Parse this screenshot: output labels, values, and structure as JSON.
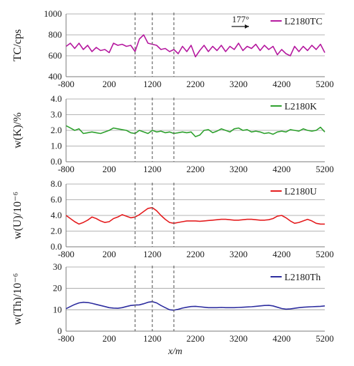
{
  "x_label": "x/m",
  "dashed_lines_x": [
    800,
    1200,
    1700
  ],
  "direction_label": "177°",
  "chart_data": [
    {
      "type": "line",
      "ylabel": "TC/cps",
      "xlim": [
        -800,
        5200
      ],
      "ylim": [
        400,
        1000
      ],
      "x_ticks": [
        "-800",
        "200",
        "1200",
        "2200",
        "3200",
        "4200",
        "5200"
      ],
      "y_ticks": [
        "400",
        "600",
        "800",
        "1000"
      ],
      "grid": true,
      "legend_position": "top-right",
      "series": [
        {
          "name": "L2180TC",
          "color": "#b5179e",
          "x": [
            -800,
            -700,
            -600,
            -500,
            -400,
            -300,
            -200,
            -100,
            0,
            100,
            200,
            300,
            400,
            500,
            600,
            700,
            800,
            900,
            1000,
            1100,
            1200,
            1300,
            1400,
            1500,
            1600,
            1700,
            1800,
            1900,
            2000,
            2100,
            2200,
            2300,
            2400,
            2500,
            2600,
            2700,
            2800,
            2900,
            3000,
            3100,
            3200,
            3300,
            3400,
            3500,
            3600,
            3700,
            3800,
            3900,
            4000,
            4100,
            4200,
            4300,
            4400,
            4500,
            4600,
            4700,
            4800,
            4900,
            5000,
            5100,
            5200
          ],
          "y": [
            690,
            720,
            670,
            720,
            660,
            700,
            640,
            680,
            650,
            660,
            630,
            720,
            700,
            710,
            690,
            700,
            640,
            760,
            800,
            720,
            710,
            700,
            660,
            670,
            640,
            660,
            620,
            690,
            640,
            700,
            590,
            650,
            700,
            640,
            690,
            650,
            700,
            640,
            690,
            660,
            720,
            650,
            690,
            670,
            710,
            650,
            700,
            660,
            690,
            610,
            660,
            620,
            600,
            690,
            640,
            690,
            650,
            700,
            660,
            710,
            630
          ]
        }
      ]
    },
    {
      "type": "line",
      "ylabel": "w(K)/%",
      "xlim": [
        -800,
        5200
      ],
      "ylim": [
        0.0,
        4.0
      ],
      "x_ticks": [
        "-800",
        "200",
        "1200",
        "2200",
        "3200",
        "4200",
        "5200"
      ],
      "y_ticks": [
        "0.0",
        "1.0",
        "2.0",
        "3.0",
        "4.0"
      ],
      "grid": true,
      "legend_position": "top-right",
      "series": [
        {
          "name": "L2180K",
          "color": "#2ca02c",
          "x": [
            -800,
            -700,
            -600,
            -500,
            -400,
            -300,
            -200,
            -100,
            0,
            100,
            200,
            300,
            400,
            500,
            600,
            700,
            800,
            900,
            1000,
            1100,
            1200,
            1300,
            1400,
            1500,
            1600,
            1700,
            1800,
            1900,
            2000,
            2100,
            2200,
            2300,
            2400,
            2500,
            2600,
            2700,
            2800,
            2900,
            3000,
            3100,
            3200,
            3300,
            3400,
            3500,
            3600,
            3700,
            3800,
            3900,
            4000,
            4100,
            4200,
            4300,
            4400,
            4500,
            4600,
            4700,
            4800,
            4900,
            5000,
            5100,
            5200
          ],
          "y": [
            2.3,
            2.15,
            2.0,
            2.1,
            1.8,
            1.85,
            1.9,
            1.85,
            1.8,
            1.9,
            2.0,
            2.15,
            2.1,
            2.05,
            2.0,
            1.85,
            1.8,
            2.0,
            1.9,
            1.8,
            2.0,
            1.9,
            1.95,
            1.85,
            1.9,
            1.8,
            1.85,
            1.9,
            1.85,
            1.9,
            1.6,
            1.7,
            2.0,
            2.05,
            1.85,
            1.95,
            2.1,
            2.0,
            1.9,
            2.1,
            2.15,
            2.0,
            2.05,
            1.9,
            1.95,
            1.9,
            1.8,
            1.85,
            1.75,
            1.9,
            1.95,
            1.9,
            2.05,
            2.0,
            1.95,
            2.1,
            2.0,
            1.95,
            2.0,
            2.2,
            1.9
          ]
        }
      ]
    },
    {
      "type": "line",
      "ylabel": "w(U)/10⁻⁶",
      "xlim": [
        -800,
        5200
      ],
      "ylim": [
        0.0,
        8.0
      ],
      "x_ticks": [
        "-800",
        "200",
        "1200",
        "2200",
        "3200",
        "4200",
        "5200"
      ],
      "y_ticks": [
        "0.0",
        "2.0",
        "4.0",
        "6.0",
        "8.0"
      ],
      "grid": true,
      "legend_position": "top-right",
      "series": [
        {
          "name": "L2180U",
          "color": "#e41a1c",
          "x": [
            -800,
            -700,
            -600,
            -500,
            -400,
            -300,
            -200,
            -100,
            0,
            100,
            200,
            300,
            400,
            500,
            600,
            700,
            800,
            900,
            1000,
            1100,
            1200,
            1300,
            1400,
            1500,
            1600,
            1700,
            1800,
            1900,
            2000,
            2100,
            2200,
            2300,
            2400,
            2500,
            2600,
            2700,
            2800,
            2900,
            3000,
            3100,
            3200,
            3300,
            3400,
            3500,
            3600,
            3700,
            3800,
            3900,
            4000,
            4100,
            4200,
            4300,
            4400,
            4500,
            4600,
            4700,
            4800,
            4900,
            5000,
            5100,
            5200
          ],
          "y": [
            4.0,
            3.6,
            3.2,
            2.9,
            3.1,
            3.4,
            3.8,
            3.6,
            3.3,
            3.1,
            3.2,
            3.6,
            3.8,
            4.1,
            3.9,
            3.7,
            3.8,
            4.1,
            4.5,
            4.9,
            5.0,
            4.6,
            4.0,
            3.5,
            3.1,
            3.0,
            3.1,
            3.2,
            3.3,
            3.3,
            3.3,
            3.25,
            3.3,
            3.35,
            3.4,
            3.45,
            3.5,
            3.5,
            3.45,
            3.4,
            3.4,
            3.45,
            3.5,
            3.5,
            3.45,
            3.4,
            3.4,
            3.45,
            3.6,
            3.9,
            4.0,
            3.7,
            3.3,
            3.0,
            3.1,
            3.3,
            3.5,
            3.3,
            3.0,
            2.9,
            2.9
          ]
        }
      ]
    },
    {
      "type": "line",
      "ylabel": "w(Th)/10⁻⁶",
      "xlim": [
        -800,
        5200
      ],
      "ylim": [
        0,
        30
      ],
      "x_ticks": [
        "-800",
        "200",
        "1200",
        "2200",
        "3200",
        "4200",
        "5200"
      ],
      "y_ticks": [
        "0",
        "10",
        "20",
        "30"
      ],
      "grid": true,
      "legend_position": "top-right",
      "series": [
        {
          "name": "L2180Th",
          "color": "#2b2b9e",
          "x": [
            -800,
            -700,
            -600,
            -500,
            -400,
            -300,
            -200,
            -100,
            0,
            100,
            200,
            300,
            400,
            500,
            600,
            700,
            800,
            900,
            1000,
            1100,
            1200,
            1300,
            1400,
            1500,
            1600,
            1700,
            1800,
            1900,
            2000,
            2100,
            2200,
            2300,
            2400,
            2500,
            2600,
            2700,
            2800,
            2900,
            3000,
            3100,
            3200,
            3300,
            3400,
            3500,
            3600,
            3700,
            3800,
            3900,
            4000,
            4100,
            4200,
            4300,
            4400,
            4500,
            4600,
            4700,
            4800,
            4900,
            5000,
            5100,
            5200
          ],
          "y": [
            10.5,
            11.5,
            12.5,
            13.2,
            13.5,
            13.4,
            13.0,
            12.5,
            12.0,
            11.5,
            11.0,
            10.8,
            10.7,
            11.0,
            11.5,
            12.0,
            12.2,
            12.3,
            12.8,
            13.5,
            13.8,
            13.2,
            12.0,
            11.0,
            10.0,
            9.8,
            10.2,
            10.8,
            11.2,
            11.5,
            11.6,
            11.4,
            11.2,
            11.0,
            11.0,
            11.0,
            11.1,
            11.0,
            11.0,
            11.0,
            11.1,
            11.2,
            11.3,
            11.4,
            11.6,
            11.8,
            12.0,
            12.1,
            11.8,
            11.2,
            10.6,
            10.3,
            10.4,
            10.7,
            11.0,
            11.2,
            11.3,
            11.4,
            11.5,
            11.6,
            11.8
          ]
        }
      ]
    }
  ]
}
